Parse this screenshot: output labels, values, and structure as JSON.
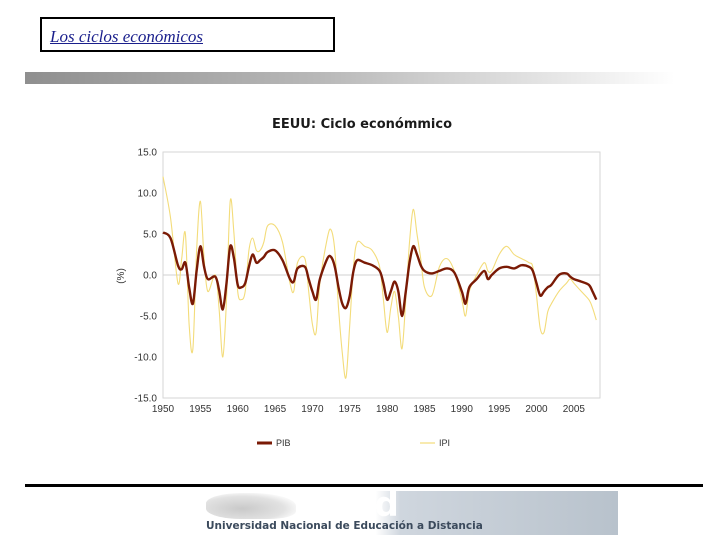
{
  "slide": {
    "title": "Los ciclos económicos"
  },
  "logo": {
    "wordmark": "uned",
    "name": "Universidad Nacional de Educación a Distancia"
  },
  "chart_data": {
    "type": "line",
    "title": "EEUU: Ciclo económmico",
    "xlabel": "",
    "ylabel": "(%)",
    "xlim": [
      1950,
      2008.5
    ],
    "ylim": [
      -15,
      15
    ],
    "x_ticks": [
      "1950",
      "1955",
      "1960",
      "1965",
      "1970",
      "1975",
      "1980",
      "1985",
      "1990",
      "1995",
      "2000",
      "2005"
    ],
    "y_ticks": [
      "15.0",
      "10.0",
      "5.0",
      "0.0",
      "-5.0",
      "-10.0",
      "-15.0"
    ],
    "grid": "horizontal at 0",
    "legend_position": "bottom",
    "colors": {
      "PIB": "#7a1a05",
      "IPI": "#f3dc7a"
    },
    "series": [
      {
        "name": "PIB",
        "x": [
          1950,
          1951,
          1952,
          1952.5,
          1953,
          1953.5,
          1954,
          1954.5,
          1955,
          1955.5,
          1956,
          1957,
          1957.5,
          1958,
          1958.5,
          1959,
          1959.5,
          1960,
          1960.5,
          1961,
          1961.5,
          1962,
          1962.5,
          1963,
          1963.5,
          1964,
          1965,
          1966,
          1967,
          1967.5,
          1968,
          1969,
          1969.5,
          1970,
          1970.5,
          1971,
          1972,
          1972.5,
          1973,
          1973.5,
          1974,
          1974.5,
          1975,
          1975.5,
          1976,
          1977,
          1978,
          1979,
          1979.5,
          1980,
          1980.5,
          1981,
          1981.5,
          1982,
          1982.5,
          1983,
          1983.5,
          1984,
          1984.5,
          1985,
          1986,
          1987,
          1988,
          1989,
          1990,
          1990.5,
          1991,
          1992,
          1993,
          1993.5,
          1994,
          1995,
          1996,
          1997,
          1998,
          1999,
          1999.5,
          2000,
          2000.5,
          2001,
          2001.5,
          2002,
          2003,
          2004,
          2004.5,
          2005,
          2006,
          2007,
          2007.5,
          2008
        ],
        "y": [
          5.2,
          4.5,
          1.2,
          0.7,
          1.5,
          -1.5,
          -3.5,
          0.5,
          3.5,
          1.0,
          -0.5,
          -0.2,
          -1.8,
          -4.2,
          -1.0,
          3.5,
          2.0,
          -1.2,
          -1.5,
          -1.0,
          1.0,
          2.5,
          1.5,
          1.8,
          2.2,
          2.8,
          3.0,
          1.8,
          -0.5,
          -0.8,
          0.8,
          1.0,
          -0.5,
          -2.0,
          -3.0,
          -0.5,
          2.0,
          2.2,
          1.0,
          -1.5,
          -3.5,
          -4.0,
          -2.5,
          0.5,
          1.8,
          1.5,
          1.2,
          0.5,
          -1.0,
          -3.0,
          -2.0,
          -0.8,
          -2.0,
          -5.0,
          -2.0,
          1.5,
          3.5,
          2.5,
          1.2,
          0.5,
          0.2,
          0.5,
          0.8,
          0.3,
          -2.0,
          -3.5,
          -1.5,
          -0.5,
          0.5,
          -0.5,
          0.0,
          0.8,
          1.0,
          0.8,
          1.2,
          1.0,
          0.5,
          -1.0,
          -2.5,
          -2.0,
          -1.5,
          -1.2,
          0.0,
          0.2,
          -0.2,
          -0.5,
          -0.8,
          -1.2,
          -2.0,
          -3.0
        ]
      },
      {
        "name": "IPI",
        "x": [
          1950,
          1951,
          1952,
          1952.5,
          1953,
          1953.5,
          1954,
          1954.5,
          1955,
          1955.5,
          1956,
          1957,
          1957.5,
          1958,
          1958.5,
          1959,
          1959.5,
          1960,
          1960.5,
          1961,
          1961.5,
          1962,
          1962.5,
          1963,
          1963.5,
          1964,
          1965,
          1966,
          1967,
          1967.5,
          1968,
          1969,
          1969.5,
          1970,
          1970.5,
          1971,
          1972,
          1972.5,
          1973,
          1973.5,
          1974,
          1974.5,
          1975,
          1975.5,
          1976,
          1977,
          1978,
          1979,
          1979.5,
          1980,
          1980.5,
          1981,
          1981.5,
          1982,
          1982.5,
          1983,
          1983.5,
          1984,
          1984.5,
          1985,
          1986,
          1987,
          1988,
          1989,
          1990,
          1990.5,
          1991,
          1992,
          1993,
          1993.5,
          1994,
          1995,
          1996,
          1997,
          1998,
          1999,
          1999.5,
          2000,
          2000.5,
          2001,
          2001.5,
          2002,
          2003,
          2004,
          2004.5,
          2005,
          2006,
          2007,
          2007.5,
          2008
        ],
        "y": [
          12.0,
          7.0,
          -1.0,
          2.0,
          5.0,
          -6.0,
          -9.0,
          3.0,
          9.0,
          2.0,
          -2.0,
          0.0,
          -4.0,
          -10.0,
          -3.0,
          9.0,
          5.0,
          -2.0,
          -3.0,
          -2.0,
          3.0,
          4.5,
          3.0,
          3.0,
          4.0,
          6.0,
          6.0,
          4.0,
          -1.0,
          -2.0,
          1.5,
          2.0,
          -2.0,
          -6.0,
          -7.0,
          -1.0,
          4.5,
          5.5,
          3.0,
          -4.0,
          -9.5,
          -12.5,
          -6.0,
          1.0,
          4.0,
          3.5,
          3.0,
          1.0,
          -3.0,
          -7.0,
          -4.0,
          -2.0,
          -5.0,
          -9.0,
          -3.0,
          4.0,
          8.0,
          5.0,
          2.0,
          -1.5,
          -2.5,
          1.0,
          2.0,
          0.5,
          -3.0,
          -5.0,
          -2.0,
          0.0,
          1.5,
          0.5,
          0.5,
          2.5,
          3.5,
          2.5,
          2.0,
          1.5,
          1.0,
          -2.5,
          -6.5,
          -7.0,
          -4.5,
          -3.5,
          -2.0,
          -1.0,
          -0.5,
          -1.0,
          -2.0,
          -3.0,
          -4.0,
          -5.5
        ]
      }
    ]
  }
}
